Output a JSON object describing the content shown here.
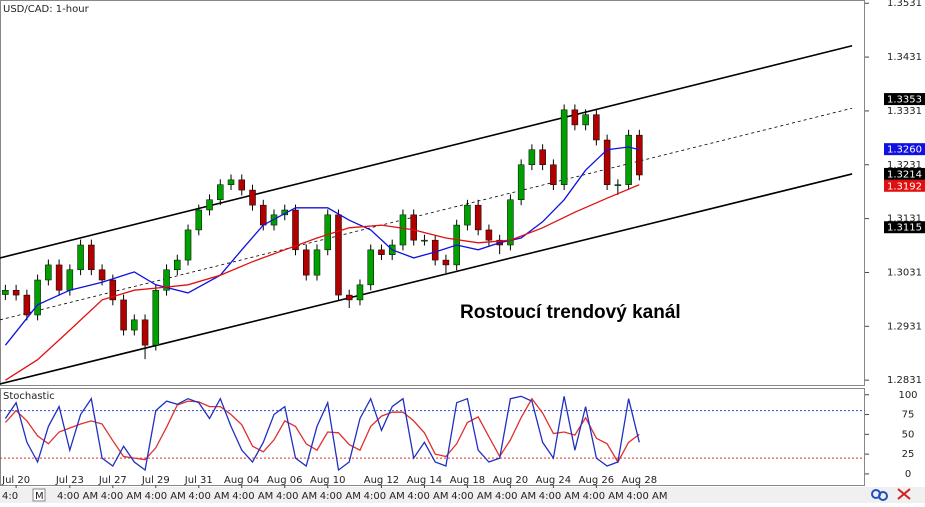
{
  "chart_data": [
    {
      "type": "candlestick",
      "title": "USD/CAD: 1-hour",
      "annotation": "Rostoucí trendový kanál",
      "up_color": "#00a000",
      "down_color": "#b00000",
      "xlim": [
        -0.5,
        80
      ],
      "ylim": [
        1.2822,
        1.3537
      ],
      "yticks": [
        1.2831,
        1.2931,
        1.3031,
        1.3131,
        1.3231,
        1.3331,
        1.3431,
        1.3531
      ],
      "open": [
        1.299,
        1.2998,
        1.2989,
        1.2952,
        1.3017,
        1.3045,
        1.2998,
        1.3036,
        1.3082,
        1.3036,
        1.3017,
        1.298,
        1.2924,
        1.2943,
        1.2896,
        1.2998,
        1.3036,
        1.3054,
        1.311,
        1.3147,
        1.3166,
        1.3194,
        1.3203,
        1.3184,
        1.3156,
        1.3119,
        1.3138,
        1.3147,
        1.3073,
        1.3026,
        1.3073,
        1.3138,
        1.2989,
        1.298,
        1.3008,
        1.3073,
        1.3064,
        1.3082,
        1.3138,
        1.3091,
        1.3091,
        1.3054,
        1.3045,
        1.3119,
        1.3156,
        1.311,
        1.3091,
        1.3082,
        1.3166,
        1.3231,
        1.3259,
        1.3231,
        1.3194,
        1.3333,
        1.3305,
        1.3324,
        1.3277,
        1.3194,
        1.3194,
        1.3286
      ],
      "high": [
        1.3008,
        1.3008,
        1.2999,
        1.3027,
        1.3055,
        1.3055,
        1.3046,
        1.3092,
        1.3092,
        1.3046,
        1.3027,
        1.299,
        1.2953,
        1.2953,
        1.3008,
        1.3046,
        1.3064,
        1.312,
        1.3157,
        1.3176,
        1.3204,
        1.3213,
        1.3213,
        1.3194,
        1.3166,
        1.3148,
        1.3157,
        1.3157,
        1.3083,
        1.3083,
        1.3148,
        1.3148,
        1.2999,
        1.3018,
        1.3083,
        1.3083,
        1.3092,
        1.3148,
        1.3148,
        1.3101,
        1.3101,
        1.3064,
        1.3129,
        1.3166,
        1.3166,
        1.312,
        1.3101,
        1.3176,
        1.3241,
        1.3269,
        1.3269,
        1.3241,
        1.3343,
        1.3343,
        1.3334,
        1.3334,
        1.3287,
        1.3204,
        1.3296,
        1.3296
      ],
      "low": [
        1.298,
        1.2979,
        1.2942,
        1.2942,
        1.3007,
        1.2988,
        1.2988,
        1.3026,
        1.3026,
        1.3007,
        1.297,
        1.2914,
        1.2914,
        1.287,
        1.2886,
        1.2988,
        1.3026,
        1.3044,
        1.31,
        1.3137,
        1.3156,
        1.3184,
        1.3174,
        1.3146,
        1.3109,
        1.3109,
        1.3128,
        1.3063,
        1.3016,
        1.3016,
        1.3063,
        1.2979,
        1.2965,
        1.297,
        1.2998,
        1.3054,
        1.3054,
        1.3072,
        1.3081,
        1.3081,
        1.3044,
        1.303,
        1.3035,
        1.3109,
        1.31,
        1.3081,
        1.3065,
        1.3072,
        1.3156,
        1.3221,
        1.3221,
        1.3184,
        1.3184,
        1.3295,
        1.3295,
        1.3267,
        1.3184,
        1.3175,
        1.3184,
        1.3202
      ],
      "close": [
        1.2998,
        1.2989,
        1.2952,
        1.3017,
        1.3045,
        1.2998,
        1.3036,
        1.3082,
        1.3036,
        1.3017,
        1.298,
        1.2924,
        1.2943,
        1.2896,
        1.2998,
        1.3036,
        1.3054,
        1.311,
        1.3147,
        1.3166,
        1.3194,
        1.3203,
        1.3184,
        1.3156,
        1.3119,
        1.3138,
        1.3147,
        1.3073,
        1.3026,
        1.3073,
        1.3138,
        1.2989,
        1.298,
        1.3008,
        1.3073,
        1.3064,
        1.3082,
        1.3138,
        1.3091,
        1.3091,
        1.3054,
        1.3045,
        1.3119,
        1.3156,
        1.311,
        1.3091,
        1.3082,
        1.3166,
        1.3231,
        1.3259,
        1.3231,
        1.3194,
        1.3333,
        1.3305,
        1.3324,
        1.3277,
        1.3194,
        1.3194,
        1.3286,
        1.3212
      ],
      "series": [
        {
          "color": "#1010e0",
          "x": [
            0,
            3,
            6,
            9,
            12,
            14,
            17,
            20,
            22,
            24,
            27,
            30,
            32,
            34,
            36,
            38,
            40,
            42,
            44,
            46,
            48,
            50,
            52,
            54,
            56,
            58,
            59
          ],
          "values": [
            1.2896,
            1.2971,
            1.2998,
            1.3013,
            1.3032,
            1.3008,
            1.2993,
            1.3026,
            1.3073,
            1.3119,
            1.3151,
            1.3151,
            1.3128,
            1.311,
            1.3073,
            1.3058,
            1.3069,
            1.3082,
            1.3073,
            1.3086,
            1.3095,
            1.3125,
            1.3166,
            1.3221,
            1.3259,
            1.3264,
            1.3259
          ]
        },
        {
          "color": "#e01010",
          "x": [
            0,
            3,
            6,
            9,
            12,
            14,
            17,
            20,
            23,
            26,
            29,
            32,
            35,
            38,
            41,
            44,
            47,
            50,
            53,
            56,
            59
          ],
          "values": [
            1.2831,
            1.2869,
            1.2924,
            1.298,
            1.2998,
            1.3002,
            1.3008,
            1.3026,
            1.3051,
            1.3073,
            1.3095,
            1.3114,
            1.3119,
            1.311,
            1.3095,
            1.3086,
            1.3091,
            1.3114,
            1.3143,
            1.3169,
            1.3194
          ]
        }
      ],
      "trend_lines": [
        {
          "x": [
            -0.5,
            78.8
          ],
          "values": [
            1.3058,
            1.3452
          ],
          "dashed": false
        },
        {
          "x": [
            -0.5,
            78.8
          ],
          "values": [
            1.2824,
            1.3214
          ],
          "dashed": false
        },
        {
          "x": [
            -0.5,
            78.8
          ],
          "values": [
            1.2943,
            1.3336
          ],
          "dashed": true
        }
      ],
      "price_tags": [
        {
          "value": 1.3353,
          "color": "#000000"
        },
        {
          "value": 1.326,
          "label": "1.3260",
          "color": "#1010e0"
        },
        {
          "value": 1.3214,
          "color": "#000000"
        },
        {
          "value": 1.3192,
          "color": "#e01010"
        },
        {
          "value": 1.3115,
          "color": "#000000"
        }
      ]
    },
    {
      "type": "line",
      "title": "Stochastic",
      "xlim": [
        -0.5,
        80
      ],
      "ylim": [
        -14,
        106
      ],
      "yticks": [
        0,
        25,
        50,
        75,
        100
      ],
      "xticks": [
        {
          "value": 1,
          "label": "Jul 20"
        },
        {
          "value": 6,
          "label": "Jul 23"
        },
        {
          "value": 10,
          "label": "Jul 27"
        },
        {
          "value": 14,
          "label": "Jul 29"
        },
        {
          "value": 18,
          "label": "Jul 31"
        },
        {
          "value": 22,
          "label": "Aug 04"
        },
        {
          "value": 26,
          "label": "Aug 06"
        },
        {
          "value": 30,
          "label": "Aug 10"
        },
        {
          "value": 35,
          "label": "Aug 12"
        },
        {
          "value": 39,
          "label": "Aug 14"
        },
        {
          "value": 43,
          "label": "Aug 18"
        },
        {
          "value": 47,
          "label": "Aug 20"
        },
        {
          "value": 51,
          "label": "Aug 24"
        },
        {
          "value": 55,
          "label": "Aug 26"
        },
        {
          "value": 59,
          "label": "Aug 28"
        }
      ],
      "levels": [
        {
          "value": 80,
          "color": "#3050d0"
        },
        {
          "value": 20,
          "color": "#e03030"
        }
      ],
      "series": [
        {
          "color": "#e03030",
          "values": [
            65,
            80,
            67,
            48,
            38,
            53,
            58,
            63,
            67,
            63,
            42,
            22,
            20,
            18,
            33,
            59,
            87,
            92,
            91,
            85,
            85,
            75,
            62,
            35,
            28,
            43,
            67,
            60,
            38,
            30,
            53,
            52,
            37,
            30,
            60,
            73,
            78,
            78,
            67,
            52,
            25,
            22,
            38,
            65,
            72,
            47,
            22,
            43,
            71,
            95,
            77,
            51,
            53,
            49,
            71,
            45,
            38,
            15,
            40,
            50
          ]
        },
        {
          "color": "#2030c0",
          "values": [
            70,
            90,
            40,
            15,
            60,
            85,
            30,
            75,
            95,
            20,
            10,
            35,
            15,
            5,
            80,
            92,
            88,
            95,
            90,
            70,
            95,
            60,
            30,
            15,
            40,
            75,
            85,
            20,
            10,
            60,
            90,
            5,
            15,
            70,
            95,
            55,
            85,
            95,
            20,
            40,
            15,
            10,
            90,
            95,
            30,
            15,
            20,
            95,
            98,
            92,
            40,
            20,
            98,
            30,
            85,
            20,
            10,
            15,
            95,
            40
          ]
        }
      ]
    }
  ],
  "footer_labels": [
    "4:0",
    "M",
    "4:00 AM",
    "4:00 AM",
    "4:00 AM",
    "4:00 AM",
    "4:00 AM",
    "4:00 AM",
    "4:00 AM",
    "4:00 AM",
    "4:00 AM",
    "4:00 AM",
    "4:00 AM",
    "4:00 AM",
    "4:00 AM",
    "4:00 AM"
  ]
}
